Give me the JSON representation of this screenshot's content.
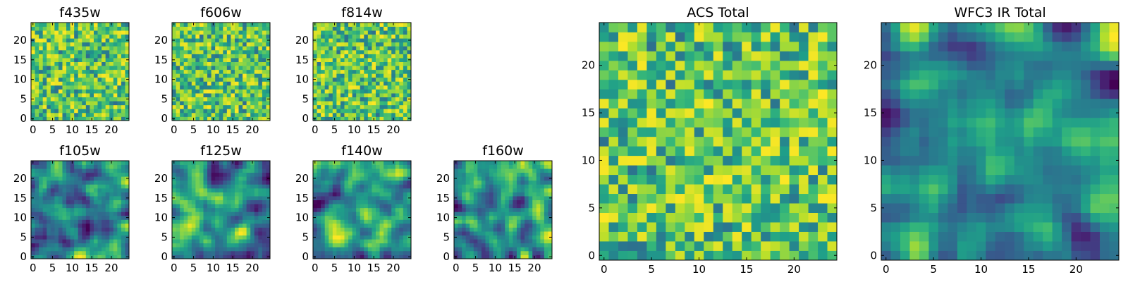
{
  "chart_data": [
    {
      "type": "heatmap",
      "title": "f435w",
      "grid_size": 25,
      "xlim": [
        0,
        24
      ],
      "ylim": [
        0,
        24
      ],
      "xticks": [
        0,
        5,
        10,
        15,
        20
      ],
      "yticks": [
        0,
        5,
        10,
        15,
        20
      ],
      "colormap": "viridis",
      "pattern": "noise",
      "seed": 11
    },
    {
      "type": "heatmap",
      "title": "f606w",
      "grid_size": 25,
      "xlim": [
        0,
        24
      ],
      "ylim": [
        0,
        24
      ],
      "xticks": [
        0,
        5,
        10,
        15,
        20
      ],
      "yticks": [
        0,
        5,
        10,
        15,
        20
      ],
      "colormap": "viridis",
      "pattern": "noise",
      "seed": 23
    },
    {
      "type": "heatmap",
      "title": "f814w",
      "grid_size": 25,
      "xlim": [
        0,
        24
      ],
      "ylim": [
        0,
        24
      ],
      "xticks": [
        0,
        5,
        10,
        15,
        20
      ],
      "yticks": [
        0,
        5,
        10,
        15,
        20
      ],
      "colormap": "viridis",
      "pattern": "noise",
      "seed": 37
    },
    {
      "type": "heatmap",
      "title": "f105w",
      "grid_size": 25,
      "xlim": [
        0,
        24
      ],
      "ylim": [
        0,
        24
      ],
      "xticks": [
        0,
        5,
        10,
        15,
        20
      ],
      "yticks": [
        0,
        5,
        10,
        15,
        20
      ],
      "colormap": "viridis",
      "pattern": "smooth",
      "seed": 41
    },
    {
      "type": "heatmap",
      "title": "f125w",
      "grid_size": 25,
      "xlim": [
        0,
        24
      ],
      "ylim": [
        0,
        24
      ],
      "xticks": [
        0,
        5,
        10,
        15,
        20
      ],
      "yticks": [
        0,
        5,
        10,
        15,
        20
      ],
      "colormap": "viridis",
      "pattern": "smooth",
      "seed": 53
    },
    {
      "type": "heatmap",
      "title": "f140w",
      "grid_size": 25,
      "xlim": [
        0,
        24
      ],
      "ylim": [
        0,
        24
      ],
      "xticks": [
        0,
        5,
        10,
        15,
        20
      ],
      "yticks": [
        0,
        5,
        10,
        15,
        20
      ],
      "colormap": "viridis",
      "pattern": "smooth",
      "seed": 67
    },
    {
      "type": "heatmap",
      "title": "f160w",
      "grid_size": 25,
      "xlim": [
        0,
        24
      ],
      "ylim": [
        0,
        24
      ],
      "xticks": [
        0,
        5,
        10,
        15,
        20
      ],
      "yticks": [
        0,
        5,
        10,
        15,
        20
      ],
      "colormap": "viridis",
      "pattern": "smooth",
      "seed": 79
    },
    {
      "type": "heatmap",
      "title": "ACS Total",
      "grid_size": 25,
      "xlim": [
        0,
        24
      ],
      "ylim": [
        0,
        24
      ],
      "xticks": [
        0,
        5,
        10,
        15,
        20
      ],
      "yticks": [
        0,
        5,
        10,
        15,
        20
      ],
      "colormap": "viridis",
      "pattern": "noise",
      "seed": 97
    },
    {
      "type": "heatmap",
      "title": "WFC3 IR Total",
      "grid_size": 25,
      "xlim": [
        0,
        24
      ],
      "ylim": [
        0,
        24
      ],
      "xticks": [
        0,
        5,
        10,
        15,
        20
      ],
      "yticks": [
        0,
        5,
        10,
        15,
        20
      ],
      "colormap": "viridis",
      "pattern": "smooth",
      "seed": 113
    }
  ]
}
